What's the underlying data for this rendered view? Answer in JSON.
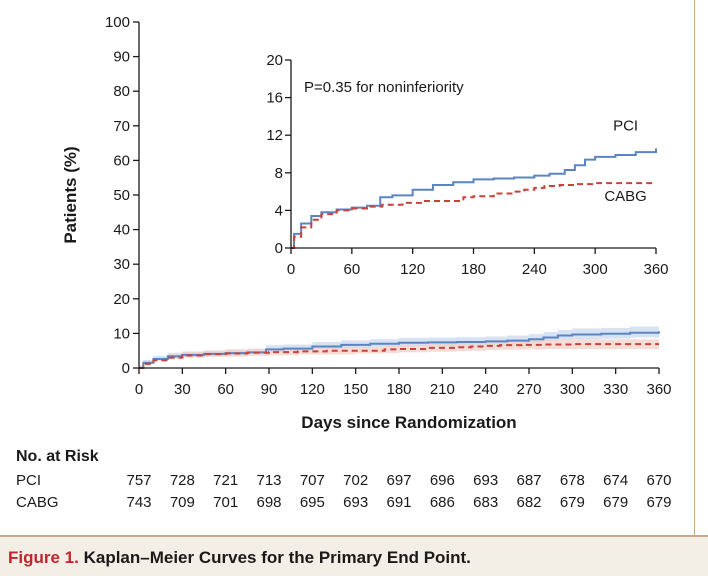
{
  "chart_data": [
    {
      "type": "line",
      "xlabel": "Days since Randomization",
      "ylabel": "Patients (%)",
      "xlim": [
        0,
        360
      ],
      "ylim": [
        0,
        100
      ],
      "x_ticks": [
        0,
        30,
        60,
        90,
        120,
        150,
        180,
        210,
        240,
        270,
        300,
        330,
        360
      ],
      "y_ticks": [
        0,
        10,
        20,
        30,
        40,
        50,
        60,
        70,
        80,
        90,
        100
      ],
      "grid": false,
      "series": [
        {
          "name": "PCI",
          "color": "#5b84c4",
          "band_color": "#c9d8ef",
          "x": [
            0,
            3,
            10,
            20,
            30,
            45,
            60,
            75,
            88,
            100,
            120,
            140,
            160,
            180,
            200,
            220,
            240,
            255,
            270,
            280,
            290,
            300,
            320,
            340,
            360
          ],
          "y": [
            0,
            1.5,
            2.6,
            3.4,
            3.8,
            4.1,
            4.3,
            4.5,
            5.4,
            5.6,
            6.2,
            6.7,
            7.0,
            7.3,
            7.4,
            7.5,
            7.7,
            7.9,
            8.3,
            8.8,
            9.4,
            9.7,
            9.9,
            10.2,
            10.6
          ],
          "lower": [
            0,
            0.8,
            1.8,
            2.5,
            2.9,
            3.1,
            3.3,
            3.5,
            4.3,
            4.5,
            5.0,
            5.5,
            5.7,
            6.0,
            6.1,
            6.2,
            6.3,
            6.5,
            6.9,
            7.3,
            7.8,
            8.1,
            8.3,
            8.5,
            8.8
          ],
          "upper": [
            0,
            2.3,
            3.5,
            4.4,
            4.8,
            5.1,
            5.4,
            5.6,
            6.6,
            6.8,
            7.5,
            8.0,
            8.3,
            8.7,
            8.8,
            8.9,
            9.1,
            9.4,
            9.8,
            10.4,
            11.0,
            11.4,
            11.6,
            12.0,
            12.5
          ]
        },
        {
          "name": "CABG",
          "color": "#c8413a",
          "band_color": "#f3d2c8",
          "x": [
            0,
            3,
            10,
            20,
            30,
            45,
            60,
            75,
            90,
            110,
            130,
            150,
            170,
            180,
            200,
            220,
            230,
            240,
            250,
            265,
            280,
            300,
            320,
            340,
            360
          ],
          "y": [
            0,
            1.2,
            2.2,
            3.0,
            3.6,
            4.0,
            4.2,
            4.4,
            4.6,
            4.8,
            5.0,
            5.0,
            5.4,
            5.5,
            5.8,
            6.0,
            6.2,
            6.4,
            6.6,
            6.7,
            6.8,
            6.9,
            6.9,
            6.9,
            6.9
          ],
          "lower": [
            0,
            0.6,
            1.4,
            2.1,
            2.6,
            3.0,
            3.2,
            3.3,
            3.5,
            3.7,
            3.9,
            3.9,
            4.2,
            4.3,
            4.5,
            4.7,
            4.9,
            5.0,
            5.2,
            5.3,
            5.4,
            5.5,
            5.5,
            5.5,
            5.5
          ],
          "upper": [
            0,
            1.8,
            3.0,
            3.9,
            4.6,
            5.0,
            5.3,
            5.5,
            5.7,
            5.9,
            6.1,
            6.1,
            6.6,
            6.7,
            7.1,
            7.3,
            7.5,
            7.8,
            8.0,
            8.1,
            8.2,
            8.3,
            8.3,
            8.3,
            8.3
          ]
        }
      ]
    },
    {
      "type": "line",
      "xlim": [
        0,
        360
      ],
      "ylim": [
        0,
        20
      ],
      "x_ticks": [
        0,
        60,
        120,
        180,
        240,
        300,
        360
      ],
      "y_ticks": [
        0,
        4,
        8,
        12,
        16,
        20
      ],
      "annotation": "P=0.35 for noninferiority",
      "series_labels": [
        {
          "text": "PCI",
          "x": 330,
          "y": 12.5
        },
        {
          "text": "CABG",
          "x": 330,
          "y": 5.0
        }
      ]
    }
  ],
  "risk_table": {
    "title": "No. at Risk",
    "rows": [
      {
        "label": "PCI",
        "values": [
          "757",
          "728",
          "721",
          "713",
          "707",
          "702",
          "697",
          "696",
          "693",
          "687",
          "678",
          "674",
          "670"
        ]
      },
      {
        "label": "CABG",
        "values": [
          "743",
          "709",
          "701",
          "698",
          "695",
          "693",
          "691",
          "686",
          "683",
          "682",
          "679",
          "679",
          "679"
        ]
      }
    ]
  },
  "caption": {
    "figure_label": "Figure 1.",
    "text": " Kaplan–Meier Curves for the Primary End Point."
  }
}
